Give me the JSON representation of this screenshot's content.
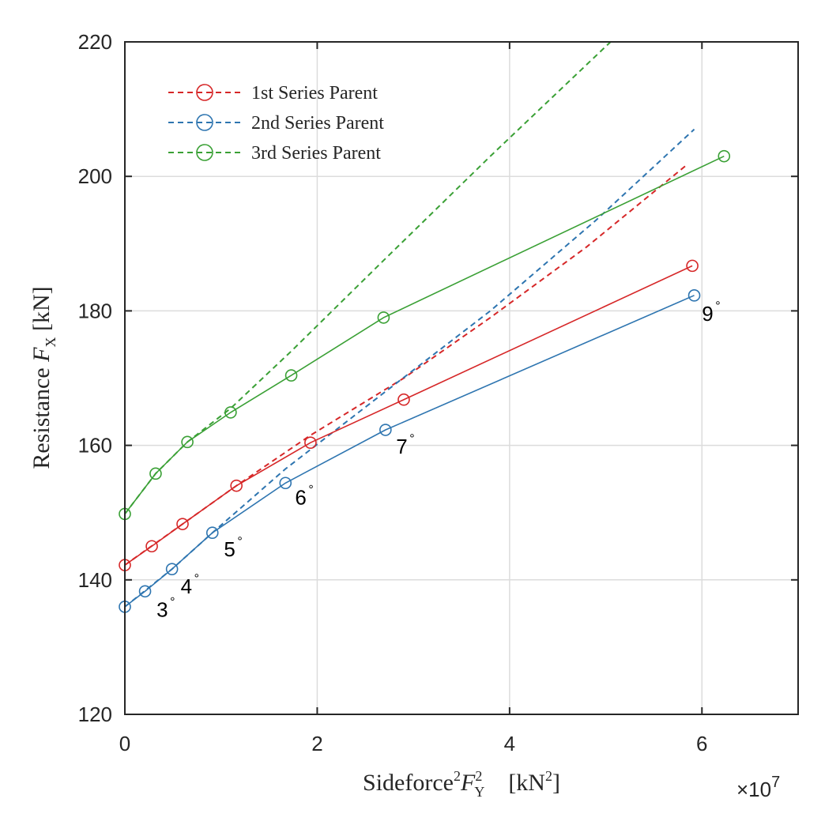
{
  "chart_data": {
    "type": "line",
    "title": "",
    "xlabel": {
      "main": "Sideforce",
      "sup": "2",
      "var": "F",
      "sub": "Y",
      "sup2": "2",
      "unit": "[kN",
      "unit_sup": "2",
      "unit_end": "]"
    },
    "ylabel": {
      "main": "Resistance ",
      "var": "F",
      "sub": "X",
      "unit": " [kN]"
    },
    "x_multiplier": "×10",
    "x_multiplier_exp": "7",
    "xlim": [
      0,
      7
    ],
    "ylim": [
      120,
      220
    ],
    "xticks": [
      0,
      2,
      4,
      6
    ],
    "yticks": [
      120,
      140,
      160,
      180,
      200,
      220
    ],
    "xtick_labels": [
      "0",
      "2",
      "4",
      "6"
    ],
    "ytick_labels": [
      "120",
      "140",
      "160",
      "180",
      "200",
      "220"
    ],
    "grid": true,
    "legend_position": "top-left",
    "x_units_note": "x values in units of 1e7 kN^2",
    "series": [
      {
        "name": "1st Series Parent",
        "color": "#d62728",
        "x": [
          0.0,
          0.28,
          0.6,
          1.16,
          1.93,
          2.9,
          5.9
        ],
        "y": [
          142.2,
          145.0,
          148.3,
          154.0,
          160.4,
          166.8,
          186.7
        ],
        "fit_x": [
          0.0,
          0.6,
          1.16,
          1.93,
          2.9,
          3.8,
          4.8,
          5.85
        ],
        "fit_y": [
          142.2,
          148.3,
          154.0,
          161.5,
          170.0,
          179.0,
          189.5,
          201.8
        ]
      },
      {
        "name": "2nd Series Parent",
        "color": "#2e75b0",
        "x": [
          0.0,
          0.21,
          0.49,
          0.91,
          1.67,
          2.71,
          5.92
        ],
        "y": [
          136.0,
          138.3,
          141.6,
          147.0,
          154.4,
          162.3,
          182.3
        ],
        "fit_x": [
          0.0,
          0.49,
          0.91,
          1.67,
          2.71,
          3.8,
          4.9,
          5.92
        ],
        "fit_y": [
          136.0,
          141.6,
          147.0,
          156.5,
          168.0,
          180.0,
          193.5,
          207.0
        ]
      },
      {
        "name": "3rd Series Parent",
        "color": "#3aa035",
        "x": [
          0.0,
          0.32,
          0.65,
          1.1,
          1.73,
          2.69,
          6.23
        ],
        "y": [
          149.8,
          155.8,
          160.5,
          164.9,
          170.4,
          179.0,
          203.0
        ],
        "fit_x": [
          0.0,
          0.32,
          0.65,
          1.1,
          1.73,
          2.69,
          3.8,
          5.05
        ],
        "fit_y": [
          149.8,
          155.8,
          160.5,
          165.5,
          174.0,
          187.5,
          203.0,
          220.0
        ]
      }
    ],
    "annotations": [
      {
        "text": "3",
        "x": 0.33,
        "y": 134.5
      },
      {
        "text": "4",
        "x": 0.58,
        "y": 138.0
      },
      {
        "text": "5",
        "x": 1.03,
        "y": 143.5
      },
      {
        "text": "6",
        "x": 1.77,
        "y": 151.2
      },
      {
        "text": "7",
        "x": 2.82,
        "y": 158.8
      },
      {
        "text": "9",
        "x": 6.0,
        "y": 178.5
      }
    ],
    "degree_symbol": "°"
  }
}
